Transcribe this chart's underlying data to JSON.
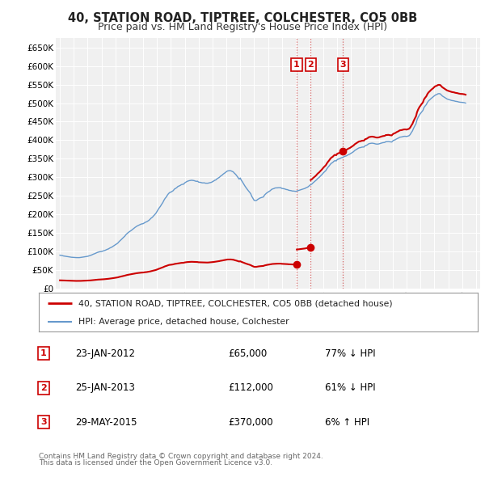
{
  "title": "40, STATION ROAD, TIPTREE, COLCHESTER, CO5 0BB",
  "subtitle": "Price paid vs. HM Land Registry's House Price Index (HPI)",
  "title_fontsize": 10.5,
  "subtitle_fontsize": 9,
  "background_color": "#ffffff",
  "plot_bg_color": "#f0f0f0",
  "grid_color": "#ffffff",
  "hpi_color": "#6699cc",
  "property_color": "#cc0000",
  "ylim": [
    0,
    675000
  ],
  "yticks": [
    0,
    50000,
    100000,
    150000,
    200000,
    250000,
    300000,
    350000,
    400000,
    450000,
    500000,
    550000,
    600000,
    650000
  ],
  "ytick_labels": [
    "£0",
    "£50K",
    "£100K",
    "£150K",
    "£200K",
    "£250K",
    "£300K",
    "£350K",
    "£400K",
    "£450K",
    "£500K",
    "£550K",
    "£600K",
    "£650K"
  ],
  "transactions": [
    {
      "date": "23-JAN-2012",
      "date_num": 2012.07,
      "price": 65000,
      "label": "1",
      "pct": "77%",
      "dir": "↓"
    },
    {
      "date": "25-JAN-2013",
      "date_num": 2013.07,
      "price": 112000,
      "label": "2",
      "pct": "61%",
      "dir": "↓"
    },
    {
      "date": "29-MAY-2015",
      "date_num": 2015.42,
      "price": 370000,
      "label": "3",
      "pct": "6%",
      "dir": "↑"
    }
  ],
  "vline_dates": [
    2012.07,
    2013.07,
    2015.42
  ],
  "legend_property": "40, STATION ROAD, TIPTREE, COLCHESTER, CO5 0BB (detached house)",
  "legend_hpi": "HPI: Average price, detached house, Colchester",
  "footnote1": "Contains HM Land Registry data © Crown copyright and database right 2024.",
  "footnote2": "This data is licensed under the Open Government Licence v3.0.",
  "hpi_data_years": [
    1995.0,
    1995.08,
    1995.17,
    1995.25,
    1995.33,
    1995.42,
    1995.5,
    1995.58,
    1995.67,
    1995.75,
    1995.83,
    1995.92,
    1996.0,
    1996.08,
    1996.17,
    1996.25,
    1996.33,
    1996.42,
    1996.5,
    1996.58,
    1996.67,
    1996.75,
    1996.83,
    1996.92,
    1997.0,
    1997.08,
    1997.17,
    1997.25,
    1997.33,
    1997.42,
    1997.5,
    1997.58,
    1997.67,
    1997.75,
    1997.83,
    1997.92,
    1998.0,
    1998.08,
    1998.17,
    1998.25,
    1998.33,
    1998.42,
    1998.5,
    1998.58,
    1998.67,
    1998.75,
    1998.83,
    1998.92,
    1999.0,
    1999.08,
    1999.17,
    1999.25,
    1999.33,
    1999.42,
    1999.5,
    1999.58,
    1999.67,
    1999.75,
    1999.83,
    1999.92,
    2000.0,
    2000.08,
    2000.17,
    2000.25,
    2000.33,
    2000.42,
    2000.5,
    2000.58,
    2000.67,
    2000.75,
    2000.83,
    2000.92,
    2001.0,
    2001.08,
    2001.17,
    2001.25,
    2001.33,
    2001.42,
    2001.5,
    2001.58,
    2001.67,
    2001.75,
    2001.83,
    2001.92,
    2002.0,
    2002.08,
    2002.17,
    2002.25,
    2002.33,
    2002.42,
    2002.5,
    2002.58,
    2002.67,
    2002.75,
    2002.83,
    2002.92,
    2003.0,
    2003.08,
    2003.17,
    2003.25,
    2003.33,
    2003.42,
    2003.5,
    2003.58,
    2003.67,
    2003.75,
    2003.83,
    2003.92,
    2004.0,
    2004.08,
    2004.17,
    2004.25,
    2004.33,
    2004.42,
    2004.5,
    2004.58,
    2004.67,
    2004.75,
    2004.83,
    2004.92,
    2005.0,
    2005.08,
    2005.17,
    2005.25,
    2005.33,
    2005.42,
    2005.5,
    2005.58,
    2005.67,
    2005.75,
    2005.83,
    2005.92,
    2006.0,
    2006.08,
    2006.17,
    2006.25,
    2006.33,
    2006.42,
    2006.5,
    2006.58,
    2006.67,
    2006.75,
    2006.83,
    2006.92,
    2007.0,
    2007.08,
    2007.17,
    2007.25,
    2007.33,
    2007.42,
    2007.5,
    2007.58,
    2007.67,
    2007.75,
    2007.83,
    2007.92,
    2008.0,
    2008.08,
    2008.17,
    2008.25,
    2008.33,
    2008.42,
    2008.5,
    2008.58,
    2008.67,
    2008.75,
    2008.83,
    2008.92,
    2009.0,
    2009.08,
    2009.17,
    2009.25,
    2009.33,
    2009.42,
    2009.5,
    2009.58,
    2009.67,
    2009.75,
    2009.83,
    2009.92,
    2010.0,
    2010.08,
    2010.17,
    2010.25,
    2010.33,
    2010.42,
    2010.5,
    2010.58,
    2010.67,
    2010.75,
    2010.83,
    2010.92,
    2011.0,
    2011.08,
    2011.17,
    2011.25,
    2011.33,
    2011.42,
    2011.5,
    2011.58,
    2011.67,
    2011.75,
    2011.83,
    2011.92,
    2012.0,
    2012.08,
    2012.17,
    2012.25,
    2012.33,
    2012.42,
    2012.5,
    2012.58,
    2012.67,
    2012.75,
    2012.83,
    2012.92,
    2013.0,
    2013.08,
    2013.17,
    2013.25,
    2013.33,
    2013.42,
    2013.5,
    2013.58,
    2013.67,
    2013.75,
    2013.83,
    2013.92,
    2014.0,
    2014.08,
    2014.17,
    2014.25,
    2014.33,
    2014.42,
    2014.5,
    2014.58,
    2014.67,
    2014.75,
    2014.83,
    2014.92,
    2015.0,
    2015.08,
    2015.17,
    2015.25,
    2015.33,
    2015.42,
    2015.5,
    2015.58,
    2015.67,
    2015.75,
    2015.83,
    2015.92,
    2016.0,
    2016.08,
    2016.17,
    2016.25,
    2016.33,
    2016.42,
    2016.5,
    2016.58,
    2016.67,
    2016.75,
    2016.83,
    2016.92,
    2017.0,
    2017.08,
    2017.17,
    2017.25,
    2017.33,
    2017.42,
    2017.5,
    2017.58,
    2017.67,
    2017.75,
    2017.83,
    2017.92,
    2018.0,
    2018.08,
    2018.17,
    2018.25,
    2018.33,
    2018.42,
    2018.5,
    2018.58,
    2018.67,
    2018.75,
    2018.83,
    2018.92,
    2019.0,
    2019.08,
    2019.17,
    2019.25,
    2019.33,
    2019.42,
    2019.5,
    2019.58,
    2019.67,
    2019.75,
    2019.83,
    2019.92,
    2020.0,
    2020.08,
    2020.17,
    2020.25,
    2020.33,
    2020.42,
    2020.5,
    2020.58,
    2020.67,
    2020.75,
    2020.83,
    2020.92,
    2021.0,
    2021.08,
    2021.17,
    2021.25,
    2021.33,
    2021.42,
    2021.5,
    2021.58,
    2021.67,
    2021.75,
    2021.83,
    2021.92,
    2022.0,
    2022.08,
    2022.17,
    2022.25,
    2022.33,
    2022.42,
    2022.5,
    2022.58,
    2022.67,
    2022.75,
    2022.83,
    2022.92,
    2023.0,
    2023.08,
    2023.17,
    2023.25,
    2023.33,
    2023.42,
    2023.5,
    2023.58,
    2023.67,
    2023.75,
    2023.83,
    2023.92,
    2024.0,
    2024.08,
    2024.17,
    2024.25
  ],
  "hpi_data_values": [
    90000,
    89500,
    89000,
    88000,
    87500,
    87000,
    86500,
    86000,
    85500,
    85000,
    84500,
    84200,
    84000,
    83800,
    83600,
    83500,
    83500,
    83600,
    84000,
    84500,
    85000,
    85500,
    86000,
    86500,
    87000,
    88000,
    89000,
    90000,
    91500,
    93000,
    94000,
    95500,
    97000,
    98000,
    99000,
    99500,
    100000,
    101000,
    102000,
    103000,
    104500,
    106000,
    107000,
    109000,
    110500,
    112000,
    114000,
    116000,
    118000,
    120000,
    122500,
    126000,
    129000,
    132000,
    135000,
    138000,
    141000,
    145000,
    148000,
    151000,
    153000,
    155000,
    157500,
    160000,
    162500,
    165000,
    167000,
    169000,
    170500,
    172000,
    173500,
    174500,
    175000,
    177000,
    179000,
    180000,
    182000,
    184000,
    187000,
    190000,
    192500,
    196000,
    199000,
    203000,
    208000,
    213000,
    218000,
    222000,
    227000,
    232000,
    238000,
    243000,
    247000,
    252000,
    256000,
    259000,
    260000,
    262000,
    264000,
    268000,
    270000,
    272000,
    275000,
    276500,
    278000,
    280000,
    281000,
    281500,
    285000,
    287000,
    289000,
    290000,
    291000,
    291500,
    292000,
    291500,
    291000,
    290000,
    289000,
    289500,
    287000,
    286500,
    286000,
    285000,
    285000,
    285000,
    284000,
    284000,
    284000,
    285000,
    285500,
    286500,
    288000,
    290000,
    292000,
    293000,
    296000,
    298000,
    300000,
    303000,
    305000,
    308000,
    310000,
    312500,
    315000,
    317000,
    317500,
    318000,
    317500,
    316000,
    314500,
    311000,
    308000,
    304000,
    300000,
    295000,
    298000,
    292000,
    287000,
    282000,
    277000,
    272000,
    268000,
    264000,
    260000,
    256000,
    249000,
    243000,
    238000,
    237000,
    237500,
    240000,
    242000,
    244000,
    245000,
    246000,
    247000,
    252000,
    255000,
    258000,
    260000,
    262000,
    264000,
    267000,
    268500,
    269500,
    271000,
    271500,
    271500,
    272000,
    272000,
    272000,
    270000,
    269500,
    269000,
    268000,
    267000,
    266500,
    265000,
    264500,
    264000,
    263000,
    263000,
    262500,
    262000,
    263000,
    264000,
    265000,
    266000,
    267000,
    268000,
    269000,
    270000,
    272000,
    273000,
    275000,
    278000,
    280000,
    282000,
    285000,
    287500,
    290000,
    293000,
    296500,
    299000,
    302000,
    305000,
    308500,
    312000,
    315000,
    318000,
    323000,
    327000,
    331000,
    335000,
    338000,
    340000,
    343000,
    345000,
    344000,
    348000,
    349000,
    350000,
    352000,
    353000,
    354000,
    356000,
    357000,
    358000,
    360000,
    361500,
    363000,
    365000,
    367000,
    369000,
    372000,
    374000,
    376000,
    378000,
    379500,
    380000,
    381000,
    381500,
    381500,
    385000,
    386000,
    387500,
    390000,
    391000,
    391500,
    392000,
    391500,
    391000,
    390000,
    389500,
    389500,
    390000,
    391000,
    392000,
    393000,
    393500,
    394000,
    396000,
    396000,
    396500,
    396000,
    395500,
    395000,
    398000,
    400000,
    401000,
    403000,
    404500,
    406000,
    408000,
    408500,
    409000,
    410000,
    410500,
    410500,
    410000,
    411000,
    412000,
    415000,
    420000,
    425000,
    432000,
    438000,
    444000,
    455000,
    462000,
    468000,
    472000,
    476000,
    480000,
    488000,
    492000,
    496000,
    502000,
    506000,
    509000,
    512000,
    514500,
    517000,
    520000,
    522000,
    523000,
    525000,
    525500,
    525000,
    522000,
    519000,
    517000,
    515000,
    513000,
    511000,
    510000,
    509000,
    508000,
    507000,
    506500,
    506000,
    505000,
    504500,
    504000,
    503000,
    502500,
    502000,
    502000,
    501500,
    501000,
    500000
  ],
  "xlim": [
    1994.7,
    2025.3
  ],
  "xticks": [
    1995,
    1996,
    1997,
    1998,
    1999,
    2000,
    2001,
    2002,
    2003,
    2004,
    2005,
    2006,
    2007,
    2008,
    2009,
    2010,
    2011,
    2012,
    2013,
    2014,
    2015,
    2016,
    2017,
    2018,
    2019,
    2020,
    2021,
    2022,
    2023,
    2024,
    2025
  ]
}
